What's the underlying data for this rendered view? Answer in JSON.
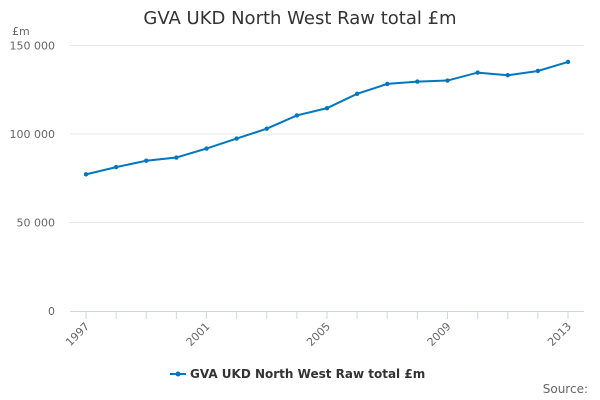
{
  "chart_data": {
    "type": "line",
    "title": "GVA UKD North West Raw total £m",
    "ylabel": "£m",
    "xlabel": "",
    "x": [
      1997,
      1998,
      1999,
      2000,
      2001,
      2002,
      2003,
      2004,
      2005,
      2006,
      2007,
      2008,
      2009,
      2010,
      2011,
      2012,
      2013
    ],
    "series": [
      {
        "name": "GVA UKD North West Raw total £m",
        "color": "#0077c0",
        "values": [
          77200,
          81300,
          84900,
          86700,
          91800,
          97400,
          103000,
          110500,
          114600,
          122700,
          128300,
          129600,
          130200,
          134700,
          133200,
          135600,
          140700
        ]
      }
    ],
    "ylim": [
      0,
      150000
    ],
    "yticks": [
      0,
      50000,
      100000,
      150000
    ],
    "ytick_labels": [
      "0",
      "50 000",
      "100 000",
      "150 000"
    ],
    "xtick_labels": [
      "1997",
      "2001",
      "2005",
      "2009",
      "2013"
    ],
    "grid": true,
    "legend": "bottom-center",
    "source_label": "Source:"
  }
}
